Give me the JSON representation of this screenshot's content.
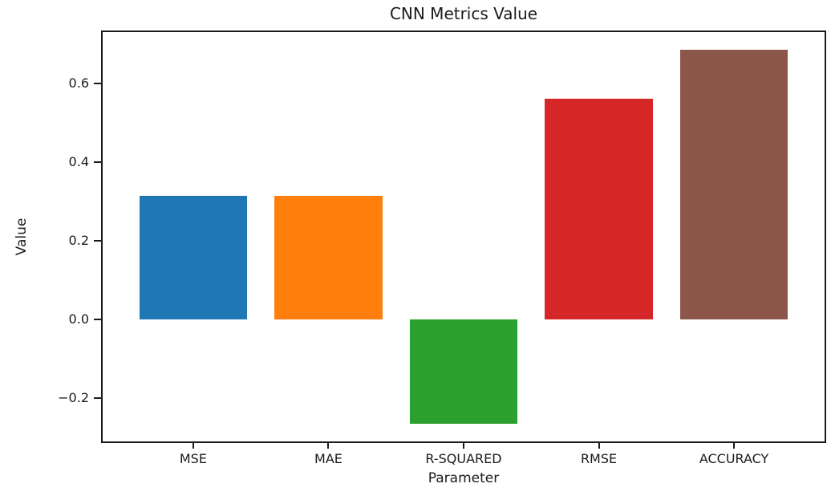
{
  "figure": {
    "background": "#ffffff",
    "spine_color": "#1a1a1a",
    "text_color": "#1a1a1a"
  },
  "chart_data": {
    "type": "bar",
    "title": "CNN Metrics Value",
    "xlabel": "Parameter",
    "ylabel": "Value",
    "categories": [
      "MSE",
      "MAE",
      "R-SQUARED",
      "RMSE",
      "ACCURACY"
    ],
    "values": [
      0.315,
      0.315,
      -0.265,
      0.56,
      0.685
    ],
    "bar_colors": [
      "#1f77b4",
      "#ff7f0e",
      "#2ca02c",
      "#d62728",
      "#8c564b"
    ],
    "yticks": [
      -0.2,
      0.0,
      0.2,
      0.4,
      0.6
    ],
    "ytick_labels": [
      "−0.2",
      "0.0",
      "0.2",
      "0.4",
      "0.6"
    ],
    "ylim": [
      -0.31,
      0.73
    ],
    "xlim": [
      -0.67,
      4.67
    ],
    "bar_width": 0.8,
    "grid": false,
    "legend": null
  }
}
